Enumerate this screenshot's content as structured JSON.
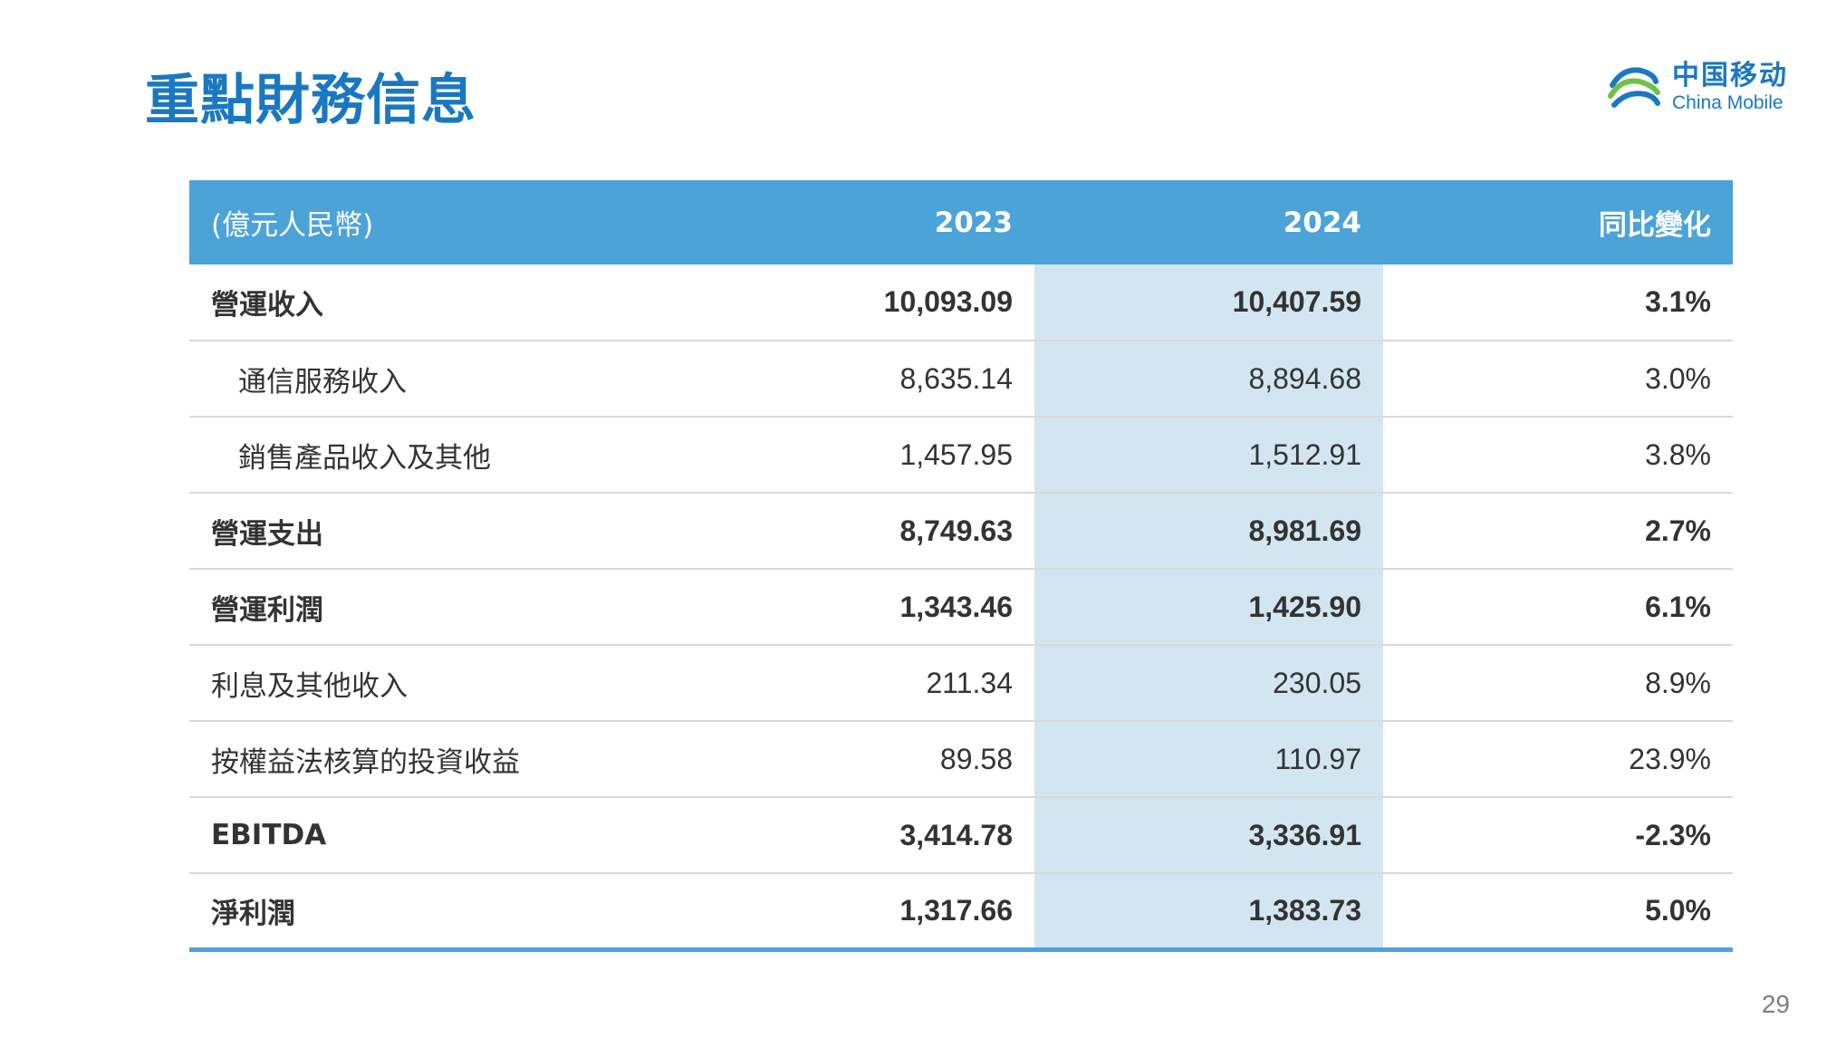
{
  "title": "重點財務信息",
  "logo": {
    "cn": "中国移动",
    "en": "China Mobile"
  },
  "table": {
    "headers": [
      "(億元人民幣)",
      "2023",
      "2024",
      "同比變化"
    ],
    "rows": [
      {
        "label": "營運收入",
        "v2023": "10,093.09",
        "v2024": "10,407.59",
        "change": "3.1%",
        "bold": true,
        "indent": false
      },
      {
        "label": "通信服務收入",
        "v2023": "8,635.14",
        "v2024": "8,894.68",
        "change": "3.0%",
        "bold": false,
        "indent": true
      },
      {
        "label": "銷售產品收入及其他",
        "v2023": "1,457.95",
        "v2024": "1,512.91",
        "change": "3.8%",
        "bold": false,
        "indent": true
      },
      {
        "label": "營運支出",
        "v2023": "8,749.63",
        "v2024": "8,981.69",
        "change": "2.7%",
        "bold": true,
        "indent": false
      },
      {
        "label": "營運利潤",
        "v2023": "1,343.46",
        "v2024": "1,425.90",
        "change": "6.1%",
        "bold": true,
        "indent": false
      },
      {
        "label": "利息及其他收入",
        "v2023": "211.34",
        "v2024": "230.05",
        "change": "8.9%",
        "bold": false,
        "indent": false
      },
      {
        "label": "按權益法核算的投資收益",
        "v2023": "89.58",
        "v2024": "110.97",
        "change": "23.9%",
        "bold": false,
        "indent": false
      },
      {
        "label": "EBITDA",
        "v2023": "3,414.78",
        "v2024": "3,336.91",
        "change": "-2.3%",
        "bold": true,
        "indent": false
      },
      {
        "label": "淨利潤",
        "v2023": "1,317.66",
        "v2024": "1,383.73",
        "change": "5.0%",
        "bold": true,
        "indent": false
      }
    ]
  },
  "page_number": "29",
  "colors": {
    "accent": "#1a78c2",
    "header_bg": "#4ba3d8",
    "highlight_col": "#d2e6f2"
  }
}
